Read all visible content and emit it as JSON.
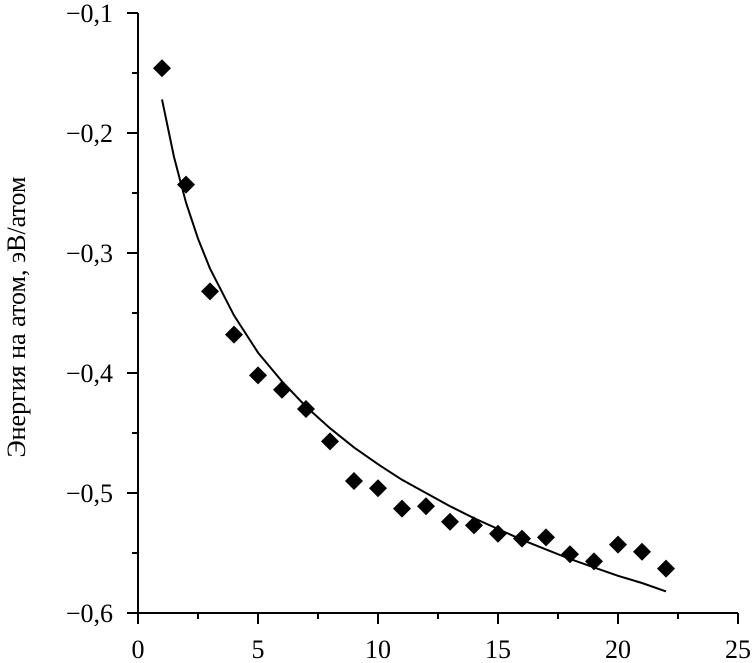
{
  "chart_data": {
    "type": "scatter",
    "title": "",
    "xlabel": "",
    "ylabel": "Энергия на атом, эВ/атом",
    "xlim": [
      0,
      25
    ],
    "ylim": [
      -0.6,
      -0.1
    ],
    "grid": false,
    "x_ticks": [
      0,
      5,
      10,
      15,
      20,
      25
    ],
    "x_tick_labels": [
      "0",
      "5",
      "10",
      "15",
      "20",
      "25"
    ],
    "y_ticks": [
      -0.1,
      -0.2,
      -0.3,
      -0.4,
      -0.5,
      -0.6
    ],
    "y_tick_labels": [
      "−0,1",
      "−0,2",
      "−0,3",
      "−0,4",
      "−0,5",
      "−0,6"
    ],
    "marker": "diamond",
    "marker_color": "#000000",
    "series": [
      {
        "x": [
          1,
          2,
          3,
          4,
          5,
          6,
          7,
          8,
          9,
          10,
          11,
          12,
          13,
          14,
          15,
          16,
          17,
          18,
          19,
          20,
          21,
          22
        ],
        "y": [
          -0.146,
          -0.243,
          -0.332,
          -0.368,
          -0.402,
          -0.414,
          -0.43,
          -0.457,
          -0.49,
          -0.496,
          -0.513,
          -0.511,
          -0.524,
          -0.527,
          -0.534,
          -0.538,
          -0.537,
          -0.551,
          -0.557,
          -0.543,
          -0.549,
          -0.563
        ]
      }
    ],
    "fit_curve": {
      "color": "#000000",
      "x": [
        1,
        1.5,
        2,
        2.5,
        3,
        4,
        5,
        6,
        7,
        8,
        9,
        10,
        11,
        12,
        13,
        14,
        15,
        16,
        17,
        18,
        19,
        20,
        21,
        22
      ],
      "y": [
        -0.172,
        -0.22,
        -0.258,
        -0.288,
        -0.313,
        -0.352,
        -0.383,
        -0.407,
        -0.428,
        -0.446,
        -0.462,
        -0.476,
        -0.489,
        -0.5,
        -0.511,
        -0.521,
        -0.53,
        -0.539,
        -0.547,
        -0.555,
        -0.562,
        -0.569,
        -0.575,
        -0.582
      ]
    }
  }
}
